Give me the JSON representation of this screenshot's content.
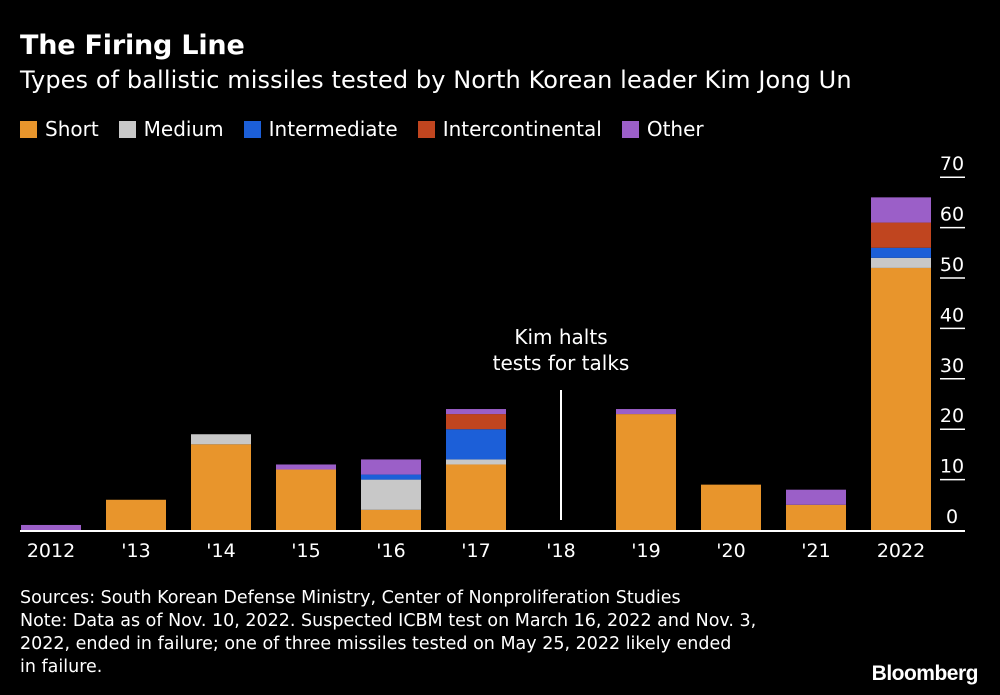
{
  "title": "The Firing Line",
  "subtitle": "Types of ballistic missiles tested by North Korean leader Kim Jong Un",
  "legend": [
    {
      "label": "Short",
      "color": "#e8952c"
    },
    {
      "label": "Medium",
      "color": "#c8c8c8"
    },
    {
      "label": "Intermediate",
      "color": "#1c5fd8"
    },
    {
      "label": "Intercontinental",
      "color": "#c0451f"
    },
    {
      "label": "Other",
      "color": "#9b5fc8"
    }
  ],
  "chart_data": {
    "type": "bar",
    "stacked": true,
    "categories": [
      "2012",
      "'13",
      "'14",
      "'15",
      "'16",
      "'17",
      "'18",
      "'19",
      "'20",
      "'21",
      "2022"
    ],
    "series": [
      {
        "name": "Short",
        "color": "#e8952c",
        "values": [
          0,
          6,
          17,
          12,
          4,
          13,
          0,
          23,
          9,
          5,
          52
        ]
      },
      {
        "name": "Medium",
        "color": "#c8c8c8",
        "values": [
          0,
          0,
          2,
          0,
          6,
          1,
          0,
          0,
          0,
          0,
          2
        ]
      },
      {
        "name": "Intermediate",
        "color": "#1c5fd8",
        "values": [
          0,
          0,
          0,
          0,
          1,
          6,
          0,
          0,
          0,
          0,
          2
        ]
      },
      {
        "name": "Intercontinental",
        "color": "#c0451f",
        "values": [
          0,
          0,
          0,
          0,
          0,
          3,
          0,
          0,
          0,
          0,
          5
        ]
      },
      {
        "name": "Other",
        "color": "#9b5fc8",
        "values": [
          1,
          0,
          0,
          1,
          3,
          1,
          0,
          1,
          0,
          3,
          5
        ]
      }
    ],
    "y_ticks": [
      "0",
      "10",
      "20",
      "30",
      "40",
      "50",
      "60",
      "70"
    ],
    "ylim": [
      0,
      70
    ],
    "y_axis_side": "right",
    "grid": false,
    "legend_position": "top-left",
    "annotation": {
      "lines": [
        "Kim halts",
        "tests for talks"
      ],
      "category": "'18"
    }
  },
  "footer": {
    "lines": [
      "Sources: South Korean Defense Ministry, Center of Nonproliferation Studies",
      "Note: Data as of Nov. 10, 2022. Suspected ICBM test on March 16, 2022 and Nov. 3,",
      "2022, ended in failure; one of three missiles tested on May 25, 2022 likely ended",
      "in failure."
    ]
  },
  "brand": "Bloomberg"
}
